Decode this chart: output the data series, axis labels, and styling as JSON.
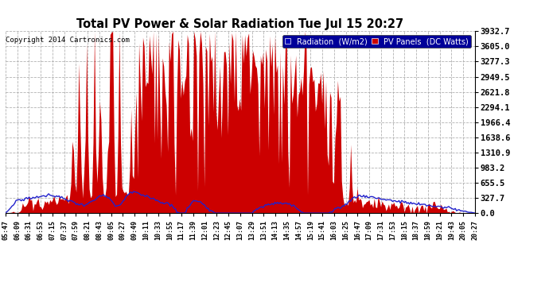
{
  "title": "Total PV Power & Solar Radiation Tue Jul 15 20:27",
  "copyright": "Copyright 2014 Cartronics.com",
  "legend_labels": [
    "Radiation  (W/m2)",
    "PV Panels  (DC Watts)"
  ],
  "legend_bg_color_radiation": "#0000bb",
  "legend_bg_color_pv": "#cc0000",
  "legend_text_color": "#ffffff",
  "radiation_color": "#2222cc",
  "pv_color": "#cc0000",
  "ytick_values": [
    0.0,
    327.7,
    655.5,
    983.2,
    1310.9,
    1638.6,
    1966.4,
    2294.1,
    2621.8,
    2949.5,
    3277.3,
    3605.0,
    3932.7
  ],
  "ylim": [
    0,
    3932.7
  ],
  "background_color": "#ffffff",
  "grid_color": "#aaaaaa",
  "xtick_labels": [
    "05:47",
    "06:09",
    "06:31",
    "06:53",
    "07:15",
    "07:37",
    "07:59",
    "08:21",
    "08:43",
    "09:05",
    "09:27",
    "09:49",
    "10:11",
    "10:33",
    "10:55",
    "11:17",
    "11:39",
    "12:01",
    "12:23",
    "12:45",
    "13:07",
    "13:29",
    "13:51",
    "14:13",
    "14:35",
    "14:57",
    "15:19",
    "15:41",
    "16:03",
    "16:25",
    "16:47",
    "17:09",
    "17:31",
    "17:53",
    "18:15",
    "18:37",
    "18:59",
    "19:21",
    "19:43",
    "20:05",
    "20:27"
  ]
}
